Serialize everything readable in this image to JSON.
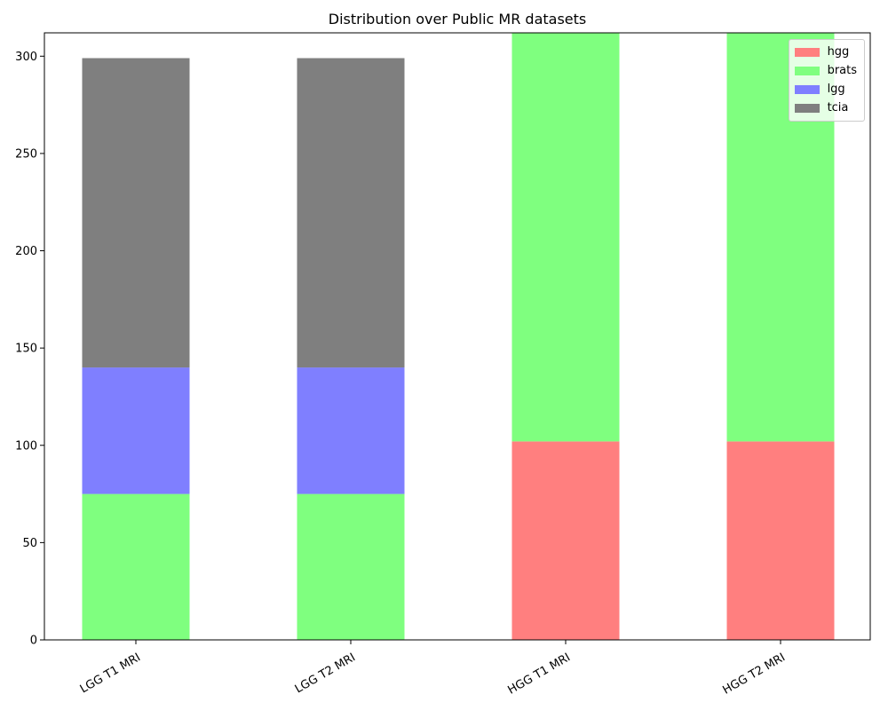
{
  "chart_data": {
    "type": "bar",
    "stacked": true,
    "title": "Distribution over Public MR datasets",
    "categories": [
      "LGG T1 MRI",
      "LGG T2 MRI",
      "HGG T1 MRI",
      "HGG T2 MRI"
    ],
    "series": [
      {
        "name": "hgg",
        "color": "#ff7f7f",
        "values": [
          0,
          0,
          102,
          102
        ]
      },
      {
        "name": "brats",
        "color": "#7fff7f",
        "values": [
          75,
          75,
          210,
          210
        ]
      },
      {
        "name": "lgg",
        "color": "#7f7fff",
        "values": [
          65,
          65,
          0,
          0
        ]
      },
      {
        "name": "tcia",
        "color": "#7f7f7f",
        "values": [
          159,
          159,
          0,
          0
        ]
      }
    ],
    "ylim": [
      0,
      312
    ],
    "yticks": [
      0,
      50,
      100,
      150,
      200,
      250,
      300
    ],
    "xlabel": "",
    "ylabel": "",
    "grid": false,
    "legend_position": "top-right"
  }
}
